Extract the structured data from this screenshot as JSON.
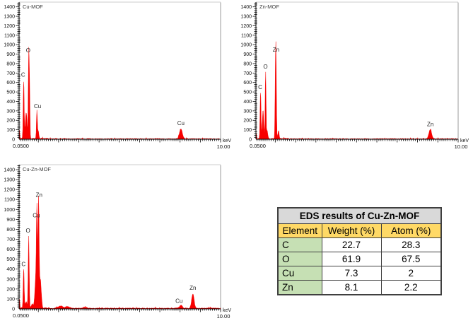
{
  "page": {
    "background": "#ffffff"
  },
  "chart_data": [
    {
      "type": "area",
      "title": "Cu-MOF",
      "xlabel_unit": "keV",
      "x_start_label": "0.0500",
      "x_end_label": "10.00",
      "xlim": [
        0.05,
        10.0
      ],
      "ylim": [
        0,
        1450
      ],
      "ytick_major": 100,
      "ytick_minor": 20,
      "ytick_label_max": 1400,
      "xtick_minor": 0.1,
      "xtick_major": 1.0,
      "series_color": "#f70000",
      "noise_counts": 11,
      "peaks_kev_counts_sigma": [
        [
          0.075,
          95,
          0.012
        ],
        [
          0.277,
          620,
          0.024
        ],
        [
          0.4,
          280,
          0.04
        ],
        [
          0.525,
          880,
          0.022
        ],
        [
          0.565,
          500,
          0.02
        ],
        [
          0.93,
          300,
          0.022
        ],
        [
          1.0,
          80,
          0.025
        ],
        [
          8.04,
          105,
          0.07
        ]
      ],
      "annotations": [
        {
          "text": "C",
          "kev": 0.25,
          "counts": 660
        },
        {
          "text": "O",
          "kev": 0.5,
          "counts": 920
        },
        {
          "text": "Cu",
          "kev": 0.96,
          "counts": 330
        },
        {
          "text": "Cu",
          "kev": 8.04,
          "counts": 150
        }
      ]
    },
    {
      "type": "area",
      "title": "Zn-MOF",
      "xlabel_unit": "keV",
      "x_start_label": "0.0500",
      "x_end_label": "10.00",
      "xlim": [
        0.05,
        10.0
      ],
      "ylim": [
        0,
        1450
      ],
      "ytick_major": 100,
      "ytick_minor": 20,
      "ytick_label_max": 1400,
      "xtick_minor": 0.1,
      "xtick_major": 1.0,
      "series_color": "#f70000",
      "noise_counts": 11,
      "peaks_kev_counts_sigma": [
        [
          0.075,
          55,
          0.012
        ],
        [
          0.277,
          505,
          0.022
        ],
        [
          0.4,
          300,
          0.035
        ],
        [
          0.525,
          720,
          0.02
        ],
        [
          0.6,
          90,
          0.03
        ],
        [
          1.005,
          450,
          0.018
        ],
        [
          1.035,
          880,
          0.022
        ],
        [
          1.16,
          85,
          0.03
        ],
        [
          8.63,
          100,
          0.065
        ]
      ],
      "annotations": [
        {
          "text": "C",
          "kev": 0.26,
          "counts": 530
        },
        {
          "text": "O",
          "kev": 0.52,
          "counts": 748
        },
        {
          "text": "Zn",
          "kev": 1.04,
          "counts": 925
        },
        {
          "text": "Zn",
          "kev": 8.63,
          "counts": 140
        }
      ]
    },
    {
      "type": "area",
      "title": "Cu-Zn-MOF",
      "xlabel_unit": "keV",
      "x_start_label": "0.0500",
      "x_end_label": "10.00",
      "xlim": [
        0.05,
        10.0
      ],
      "ylim": [
        0,
        1450
      ],
      "ytick_major": 100,
      "ytick_minor": 20,
      "ytick_label_max": 1400,
      "xtick_minor": 0.1,
      "xtick_major": 1.0,
      "series_color": "#f70000",
      "noise_counts": 13,
      "peaks_kev_counts_sigma": [
        [
          0.075,
          100,
          0.012
        ],
        [
          0.277,
          400,
          0.024
        ],
        [
          0.4,
          60,
          0.05
        ],
        [
          0.525,
          740,
          0.024
        ],
        [
          0.7,
          40,
          0.05
        ],
        [
          0.88,
          300,
          0.05
        ],
        [
          0.93,
          860,
          0.026
        ],
        [
          1.012,
          1080,
          0.026
        ],
        [
          1.1,
          290,
          0.045
        ],
        [
          2.1,
          22,
          0.12
        ],
        [
          2.45,
          18,
          0.09
        ],
        [
          3.3,
          12,
          0.1
        ],
        [
          8.04,
          30,
          0.07
        ],
        [
          8.63,
          145,
          0.06
        ]
      ],
      "annotations": [
        {
          "text": "C",
          "kev": 0.27,
          "counts": 430
        },
        {
          "text": "O",
          "kev": 0.49,
          "counts": 768
        },
        {
          "text": "Cu",
          "kev": 0.9,
          "counts": 920
        },
        {
          "text": "Zn",
          "kev": 1.04,
          "counts": 1125
        },
        {
          "text": "Cu",
          "kev": 7.95,
          "counts": 62
        },
        {
          "text": "Zn",
          "kev": 8.63,
          "counts": 192
        }
      ]
    },
    {
      "type": "table",
      "title": "EDS results of Cu-Zn-MOF",
      "columns": [
        "Element",
        "Weight (%)",
        "Atom (%)"
      ],
      "rows": [
        [
          "C",
          "22.7",
          "28.3"
        ],
        [
          "O",
          "61.9",
          "67.5"
        ],
        [
          "Cu",
          "7.3",
          "2"
        ],
        [
          "Zn",
          "8.1",
          "2.2"
        ]
      ],
      "colors": {
        "title_bg": "#d9d9d9",
        "header_bg": "#ffd966",
        "element_bg": "#c6e0b4",
        "border": "#3f3f3f"
      }
    }
  ]
}
